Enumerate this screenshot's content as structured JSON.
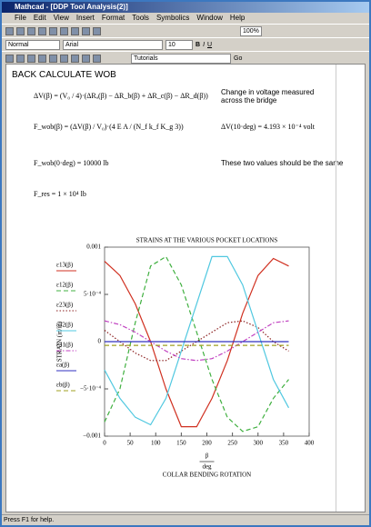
{
  "window": {
    "title": "Mathcad - [DDP Tool Analysis(2)]",
    "status": "Press F1 for help."
  },
  "menu": [
    "File",
    "Edit",
    "View",
    "Insert",
    "Format",
    "Tools",
    "Symbolics",
    "Window",
    "Help"
  ],
  "toolbar": {
    "zoom": "100%",
    "style": "Normal",
    "font": "Arial",
    "size": "10",
    "bold": "B",
    "italic": "I",
    "underline": "U",
    "resources": "Tutorials",
    "go": "Go"
  },
  "document": {
    "heading": "BACK CALCULATE WOB",
    "eq1": "ΔV(β) = (V₀ / 4)·(ΔRₐ(β) − ΔR_b(β) + ΔR_c(β) − ΔR_d(β))",
    "eq1_note": "Change in voltage measured across the bridge",
    "eq2": "F_wob(β) = (ΔV(β) / V₀)·(4 E A / (N_f k_f K_g 3))",
    "eq2_result": "ΔV(10·deg) = 4.193 × 10⁻⁴ volt",
    "eq3": "F_wob(0·deg) = 10000 lb",
    "eq3_note": "These two values should be the same",
    "eq4": "F_res = 1 × 10⁴ lb"
  },
  "chart_data": {
    "type": "line",
    "title": "STRAINS AT THE VARIOUS POCKET LOCATIONS",
    "ylabel": "STRAIN (in/in)",
    "x_variable": "β",
    "x_unit": "deg",
    "xlabel": "COLLAR BENDING ROTATION",
    "x": [
      0,
      30,
      60,
      90,
      120,
      150,
      180,
      210,
      240,
      270,
      300,
      330,
      360
    ],
    "xlim": [
      0,
      400
    ],
    "xticks": [
      0,
      50,
      100,
      150,
      200,
      250,
      300,
      350,
      400
    ],
    "ylim": [
      -0.001,
      0.001
    ],
    "yticks": [
      {
        "value": 0.001,
        "label": "0.001"
      },
      {
        "value": 0.0005,
        "label": "5·10⁻⁴"
      },
      0,
      {
        "value": -0.0005,
        "label": "−5·10⁻⁴"
      },
      {
        "value": -0.001,
        "label": "−0.001"
      }
    ],
    "grid": false,
    "series": [
      {
        "name": "ε13(β)",
        "color": "#d03020",
        "style": "solid",
        "values": [
          0.00085,
          0.0007,
          0.0004,
          0.0,
          -0.0005,
          -0.0009,
          -0.0009,
          -0.0006,
          -0.0002,
          0.0003,
          0.0007,
          0.00088,
          0.0008
        ]
      },
      {
        "name": "ε12(β)",
        "color": "#40b040",
        "style": "dashed",
        "values": [
          -0.00085,
          -0.0005,
          0.0002,
          0.0008,
          0.0009,
          0.0006,
          0.0001,
          -0.0004,
          -0.0008,
          -0.00095,
          -0.0009,
          -0.0006,
          -0.0004
        ]
      },
      {
        "name": "ε23(β)",
        "color": "#8b2020",
        "style": "dotted",
        "values": [
          0.00012,
          0.0,
          -0.00012,
          -0.0002,
          -0.0002,
          -0.0001,
          0.0,
          0.0001,
          0.0002,
          0.00022,
          0.00015,
          0.0,
          -0.0001
        ]
      },
      {
        "name": "ε32(β)",
        "color": "#50c8e0",
        "style": "solid",
        "values": [
          -0.0003,
          -0.0006,
          -0.0008,
          -0.00088,
          -0.0006,
          -0.0001,
          0.0004,
          0.0009,
          0.0009,
          0.0006,
          0.0001,
          -0.0004,
          -0.0007
        ]
      },
      {
        "name": "ε31(β)",
        "color": "#c040c0",
        "style": "dashdot",
        "values": [
          0.00022,
          0.00018,
          0.0001,
          0.0,
          -0.0001,
          -0.00018,
          -0.0002,
          -0.00018,
          -0.0001,
          0.0,
          0.0001,
          0.0002,
          0.00022
        ]
      },
      {
        "name": "εa(β)",
        "color": "#3030c0",
        "style": "solid",
        "values": [
          0,
          0,
          0,
          0,
          0,
          0,
          0,
          0,
          0,
          0,
          0,
          0,
          0
        ]
      },
      {
        "name": "εb(β)",
        "color": "#a0a020",
        "style": "dashed",
        "values": [
          -4e-05,
          -4e-05,
          -4e-05,
          -4e-05,
          -4e-05,
          -4e-05,
          -4e-05,
          -4e-05,
          -4e-05,
          -4e-05,
          -4e-05,
          -4e-05,
          -4e-05
        ]
      }
    ]
  }
}
